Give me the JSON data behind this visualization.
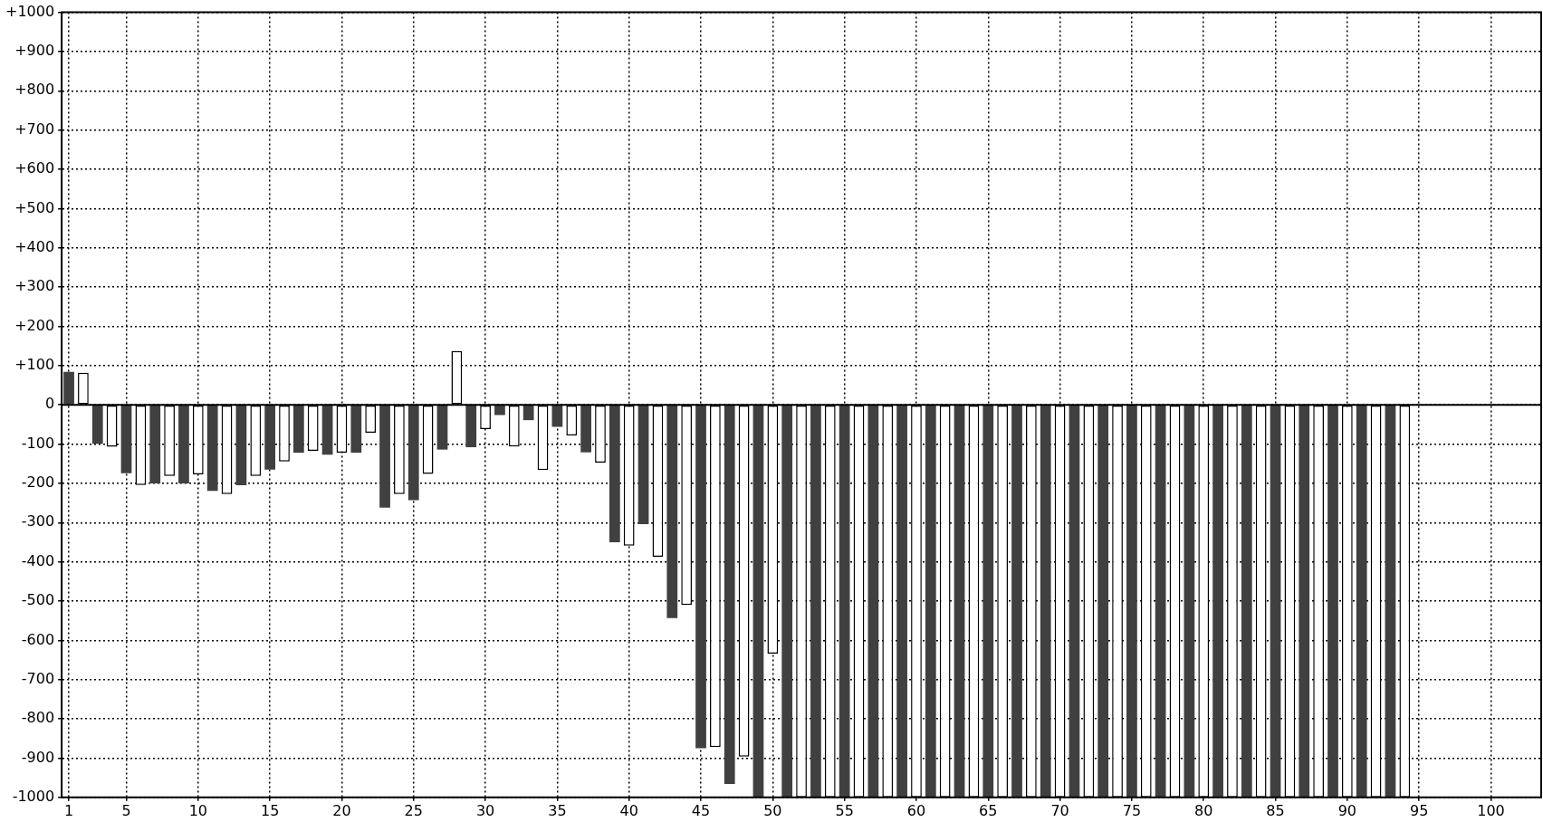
{
  "chart_data": {
    "type": "bar",
    "x": [
      1,
      2,
      3,
      4,
      5,
      6,
      7,
      8,
      9,
      10,
      11,
      12,
      13,
      14,
      15,
      16,
      17,
      18,
      19,
      20,
      21,
      22,
      23,
      24,
      25,
      26,
      27,
      28,
      29,
      30,
      31,
      32,
      33,
      34,
      35,
      36,
      37,
      38,
      39,
      40,
      41,
      42,
      43,
      44,
      45,
      46,
      47,
      48,
      49,
      50,
      51,
      52,
      53,
      54,
      55,
      56,
      57,
      58,
      59,
      60,
      61,
      62,
      63,
      64,
      65,
      66,
      67,
      68,
      69,
      70,
      71,
      72,
      73,
      74,
      75,
      76,
      77,
      78,
      79,
      80,
      81,
      82,
      83,
      84,
      85,
      86,
      87,
      88,
      89,
      90,
      91,
      92,
      93,
      94
    ],
    "values": [
      84,
      82,
      -99,
      -107,
      -174,
      -204,
      -200,
      -181,
      -200,
      -177,
      -219,
      -227,
      -205,
      -181,
      -165,
      -144,
      -122,
      -117,
      -127,
      -122,
      -122,
      -71,
      -262,
      -227,
      -243,
      -176,
      -114,
      137,
      -108,
      -62,
      -26,
      -106,
      -39,
      -166,
      -56,
      -78,
      -121,
      -147,
      -350,
      -359,
      -304,
      -387,
      -543,
      -510,
      -875,
      -872,
      -966,
      -896,
      -1000,
      -634,
      -1000,
      -1000,
      -1000,
      -1000,
      -1000,
      -1000,
      -1000,
      -1000,
      -1000,
      -1000,
      -1000,
      -1000,
      -1000,
      -1000,
      -1000,
      -1000,
      -1000,
      -1000,
      -1000,
      -1000,
      -1000,
      -1000,
      -1000,
      -1000,
      -1000,
      -1000,
      -1000,
      -1000,
      -1000,
      -1000,
      -1000,
      -1000,
      -1000,
      -1000,
      -1000,
      -1000,
      -1000,
      -1000,
      -1000,
      -1000,
      -1000,
      -1000,
      -1000,
      -1000
    ],
    "colors": [
      "#404040",
      "#ffffff",
      "#404040",
      "#ffffff",
      "#404040",
      "#ffffff",
      "#404040",
      "#ffffff",
      "#404040",
      "#ffffff",
      "#404040",
      "#ffffff",
      "#404040",
      "#ffffff",
      "#404040",
      "#ffffff",
      "#404040",
      "#ffffff",
      "#404040",
      "#ffffff",
      "#404040",
      "#ffffff",
      "#404040",
      "#ffffff",
      "#404040",
      "#ffffff",
      "#404040",
      "#ffffff",
      "#404040",
      "#ffffff",
      "#404040",
      "#ffffff",
      "#404040",
      "#ffffff",
      "#404040",
      "#ffffff",
      "#404040",
      "#ffffff",
      "#404040",
      "#ffffff",
      "#404040",
      "#ffffff",
      "#404040",
      "#ffffff",
      "#404040",
      "#ffffff",
      "#404040",
      "#ffffff",
      "#404040",
      "#ffffff",
      "#404040",
      "#ffffff",
      "#404040",
      "#ffffff",
      "#404040",
      "#ffffff",
      "#404040",
      "#ffffff",
      "#404040",
      "#ffffff",
      "#404040",
      "#ffffff",
      "#404040",
      "#ffffff",
      "#404040",
      "#ffffff",
      "#404040",
      "#ffffff",
      "#404040",
      "#ffffff",
      "#404040",
      "#ffffff",
      "#404040",
      "#ffffff",
      "#404040",
      "#ffffff",
      "#404040",
      "#ffffff",
      "#404040",
      "#ffffff",
      "#404040",
      "#ffffff",
      "#404040",
      "#ffffff",
      "#404040",
      "#ffffff",
      "#404040",
      "#ffffff",
      "#404040",
      "#ffffff",
      "#404040",
      "#ffffff",
      "#404040",
      "#ffffff"
    ],
    "xlim": [
      0.5,
      103.5
    ],
    "xticks": [
      1,
      5,
      10,
      15,
      20,
      25,
      30,
      35,
      40,
      45,
      50,
      55,
      60,
      65,
      70,
      75,
      80,
      85,
      90,
      95,
      100
    ],
    "ylim": [
      -1000,
      1000
    ],
    "yticks": [
      -1000,
      -900,
      -800,
      -700,
      -600,
      -500,
      -400,
      -300,
      -200,
      -100,
      0,
      {
        "value": 100,
        "label": "+100"
      },
      {
        "value": 200,
        "label": "+200"
      },
      {
        "value": 300,
        "label": "+300"
      },
      {
        "value": 400,
        "label": "+400"
      },
      {
        "value": 500,
        "label": "+500"
      },
      {
        "value": 600,
        "label": "+600"
      },
      {
        "value": 700,
        "label": "+700"
      },
      {
        "value": 800,
        "label": "+800"
      },
      {
        "value": 900,
        "label": "+900"
      },
      {
        "value": 1000,
        "label": "+1000"
      }
    ],
    "grid": true,
    "legend": false
  }
}
